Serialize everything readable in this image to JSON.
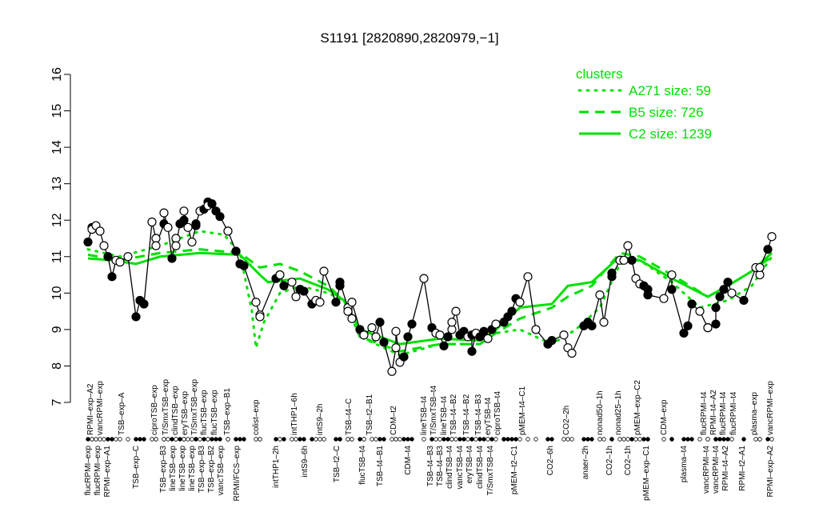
{
  "chart_data": {
    "type": "line",
    "title": "S1191 [2820890,2820979,−1]",
    "xlabel": "",
    "ylabel": "",
    "ylim": [
      7,
      16
    ],
    "xlim": [
      0,
      175
    ],
    "yticks": [
      "7",
      "8",
      "9",
      "10",
      "11",
      "12",
      "13",
      "14",
      "15",
      "16"
    ],
    "grid": false,
    "legend": {
      "title": "clusters",
      "placement": "top-right",
      "color": "#00e000",
      "entries": [
        {
          "label": "A271 size: 59",
          "style": "dotted"
        },
        {
          "label": "B5 size: 726",
          "style": "dashed"
        },
        {
          "label": "C2 size: 1239",
          "style": "solid"
        }
      ]
    },
    "points": [
      [
        2,
        11.4,
        1
      ],
      [
        3,
        11.8,
        1
      ],
      [
        3,
        11.75,
        0
      ],
      [
        4,
        11.85,
        0
      ],
      [
        5,
        11.7,
        0
      ],
      [
        6,
        11.3,
        0
      ],
      [
        7,
        11.0,
        1
      ],
      [
        8,
        10.45,
        1
      ],
      [
        9,
        10.9,
        0
      ],
      [
        10,
        10.85,
        0
      ],
      [
        12,
        11.0,
        0
      ],
      [
        14,
        9.35,
        1
      ],
      [
        15,
        9.8,
        1
      ],
      [
        16,
        9.7,
        1
      ],
      [
        18,
        11.95,
        0
      ],
      [
        19,
        11.5,
        0
      ],
      [
        19,
        11.3,
        0
      ],
      [
        21,
        11.9,
        1
      ],
      [
        21,
        12.2,
        0
      ],
      [
        22,
        11.8,
        0
      ],
      [
        23,
        10.95,
        1
      ],
      [
        24,
        11.5,
        0
      ],
      [
        24,
        11.3,
        0
      ],
      [
        25,
        11.9,
        1
      ],
      [
        26,
        12.0,
        1
      ],
      [
        26,
        12.25,
        0
      ],
      [
        27,
        11.8,
        0
      ],
      [
        28,
        11.4,
        0
      ],
      [
        29,
        11.85,
        1
      ],
      [
        29,
        11.9,
        1
      ],
      [
        30,
        12.25,
        0
      ],
      [
        31,
        12.3,
        1
      ],
      [
        32,
        12.5,
        1
      ],
      [
        32,
        12.4,
        0
      ],
      [
        33,
        12.45,
        1
      ],
      [
        34,
        12.25,
        1
      ],
      [
        35,
        12.1,
        1
      ],
      [
        37,
        11.7,
        0
      ],
      [
        37,
        11.7,
        0
      ],
      [
        39,
        11.15,
        1
      ],
      [
        40,
        10.8,
        1
      ],
      [
        41,
        10.75,
        1
      ],
      [
        44,
        9.75,
        0
      ],
      [
        45,
        9.4,
        0
      ],
      [
        45,
        9.35,
        0
      ],
      [
        49,
        10.4,
        1
      ],
      [
        50,
        10.5,
        1
      ],
      [
        50,
        10.5,
        0
      ],
      [
        51,
        10.2,
        1
      ],
      [
        53,
        10.3,
        0
      ],
      [
        54,
        9.9,
        0
      ],
      [
        55,
        10.1,
        1
      ],
      [
        56,
        10.05,
        1
      ],
      [
        58,
        9.7,
        1
      ],
      [
        59,
        9.8,
        0
      ],
      [
        60,
        9.75,
        0
      ],
      [
        61,
        10.6,
        0
      ],
      [
        64,
        9.75,
        1
      ],
      [
        65,
        10.2,
        1
      ],
      [
        65,
        10.3,
        1
      ],
      [
        67,
        9.6,
        0
      ],
      [
        67,
        9.5,
        0
      ],
      [
        68,
        9.3,
        0
      ],
      [
        68,
        9.75,
        0
      ],
      [
        70,
        9.0,
        1
      ],
      [
        71,
        8.85,
        1
      ],
      [
        71,
        8.85,
        0
      ],
      [
        73,
        9.05,
        0
      ],
      [
        74,
        8.8,
        0
      ],
      [
        75,
        9.2,
        1
      ],
      [
        76,
        8.65,
        1
      ],
      [
        78,
        7.85,
        0
      ],
      [
        79,
        8.5,
        0
      ],
      [
        79,
        8.95,
        0
      ],
      [
        80,
        8.1,
        0
      ],
      [
        81,
        8.25,
        1
      ],
      [
        82,
        8.8,
        1
      ],
      [
        83,
        9.15,
        1
      ],
      [
        86,
        10.4,
        0
      ],
      [
        88,
        9.05,
        1
      ],
      [
        89,
        8.9,
        0
      ],
      [
        90,
        8.85,
        0
      ],
      [
        91,
        8.55,
        1
      ],
      [
        92,
        8.8,
        1
      ],
      [
        93,
        9.0,
        0
      ],
      [
        93,
        9.2,
        0
      ],
      [
        94,
        9.5,
        0
      ],
      [
        95,
        8.85,
        1
      ],
      [
        96,
        8.95,
        1
      ],
      [
        97,
        8.8,
        0
      ],
      [
        98,
        8.85,
        1
      ],
      [
        98,
        8.4,
        1
      ],
      [
        99,
        8.9,
        0
      ],
      [
        100,
        8.8,
        1
      ],
      [
        101,
        8.95,
        1
      ],
      [
        102,
        8.75,
        0
      ],
      [
        103,
        9.0,
        1
      ],
      [
        104,
        9.15,
        0
      ],
      [
        106,
        9.2,
        0
      ],
      [
        106,
        9.2,
        1
      ],
      [
        107,
        9.35,
        1
      ],
      [
        108,
        9.5,
        1
      ],
      [
        109,
        9.85,
        1
      ],
      [
        110,
        9.75,
        0
      ],
      [
        112,
        10.45,
        0
      ],
      [
        114,
        9.0,
        0
      ],
      [
        117,
        8.6,
        1
      ],
      [
        118,
        8.7,
        1
      ],
      [
        121,
        8.85,
        0
      ],
      [
        122,
        8.5,
        0
      ],
      [
        123,
        8.35,
        0
      ],
      [
        126,
        9.1,
        1
      ],
      [
        127,
        9.2,
        1
      ],
      [
        128,
        9.1,
        1
      ],
      [
        130,
        9.95,
        0
      ],
      [
        131,
        9.2,
        0
      ],
      [
        133,
        10.55,
        1
      ],
      [
        133,
        10.45,
        1
      ],
      [
        135,
        10.9,
        0
      ],
      [
        136,
        10.9,
        0
      ],
      [
        137,
        11.3,
        0
      ],
      [
        138,
        10.9,
        1
      ],
      [
        139,
        10.4,
        0
      ],
      [
        140,
        10.25,
        0
      ],
      [
        141,
        10.2,
        1
      ],
      [
        142,
        10.1,
        1
      ],
      [
        142,
        9.95,
        1
      ],
      [
        146,
        9.85,
        0
      ],
      [
        148,
        10.5,
        0
      ],
      [
        148,
        10.1,
        1
      ],
      [
        151,
        8.9,
        1
      ],
      [
        152,
        9.1,
        1
      ],
      [
        153,
        9.7,
        1
      ],
      [
        155,
        9.5,
        0
      ],
      [
        157,
        9.05,
        1
      ],
      [
        157,
        9.05,
        0
      ],
      [
        159,
        9.15,
        1
      ],
      [
        159,
        9.6,
        1
      ],
      [
        160,
        9.9,
        1
      ],
      [
        161,
        10.1,
        1
      ],
      [
        162,
        10.3,
        1
      ],
      [
        163,
        10.0,
        0
      ],
      [
        166,
        9.8,
        1
      ],
      [
        169,
        10.7,
        0
      ],
      [
        170,
        10.5,
        0
      ],
      [
        170,
        10.7,
        0
      ],
      [
        172,
        11.2,
        1
      ],
      [
        173,
        11.55,
        0
      ]
    ],
    "series": [
      {
        "name": "A271 size: 59",
        "style": "dotted",
        "xy": [
          [
            2,
            11.2
          ],
          [
            10,
            11.0
          ],
          [
            20,
            11.3
          ],
          [
            30,
            11.7
          ],
          [
            36,
            11.6
          ],
          [
            40,
            11.1
          ],
          [
            43,
            9.5
          ],
          [
            44,
            8.5
          ],
          [
            46,
            9.2
          ],
          [
            50,
            10.0
          ],
          [
            55,
            10.2
          ],
          [
            62,
            10.0
          ],
          [
            66,
            9.8
          ],
          [
            70,
            8.8
          ],
          [
            80,
            8.3
          ],
          [
            90,
            8.6
          ],
          [
            100,
            8.6
          ],
          [
            104,
            8.9
          ],
          [
            110,
            9.0
          ],
          [
            118,
            8.6
          ],
          [
            124,
            9.0
          ],
          [
            130,
            9.6
          ],
          [
            135,
            10.8
          ],
          [
            140,
            10.9
          ],
          [
            148,
            10.3
          ],
          [
            155,
            9.6
          ],
          [
            162,
            9.8
          ],
          [
            168,
            10.2
          ],
          [
            173,
            11.0
          ]
        ]
      },
      {
        "name": "B5 size: 726",
        "style": "dashed",
        "xy": [
          [
            2,
            11.05
          ],
          [
            10,
            10.9
          ],
          [
            20,
            11.1
          ],
          [
            30,
            11.2
          ],
          [
            40,
            11.1
          ],
          [
            45,
            10.7
          ],
          [
            50,
            10.8
          ],
          [
            55,
            10.6
          ],
          [
            62,
            10.2
          ],
          [
            66,
            9.8
          ],
          [
            70,
            8.8
          ],
          [
            80,
            8.4
          ],
          [
            90,
            8.6
          ],
          [
            100,
            8.6
          ],
          [
            104,
            8.9
          ],
          [
            110,
            9.3
          ],
          [
            118,
            9.6
          ],
          [
            122,
            9.9
          ],
          [
            128,
            10.2
          ],
          [
            135,
            11.1
          ],
          [
            140,
            11.0
          ],
          [
            148,
            10.5
          ],
          [
            157,
            9.9
          ],
          [
            162,
            10.2
          ],
          [
            168,
            10.6
          ],
          [
            173,
            11.0
          ]
        ]
      },
      {
        "name": "C2 size: 1239",
        "style": "solid",
        "xy": [
          [
            2,
            10.95
          ],
          [
            8,
            10.9
          ],
          [
            14,
            10.8
          ],
          [
            20,
            11.0
          ],
          [
            30,
            11.1
          ],
          [
            40,
            11.05
          ],
          [
            45,
            10.5
          ],
          [
            47,
            10.3
          ],
          [
            55,
            10.4
          ],
          [
            62,
            10.1
          ],
          [
            66,
            9.8
          ],
          [
            70,
            9.0
          ],
          [
            75,
            8.8
          ],
          [
            80,
            8.6
          ],
          [
            90,
            8.75
          ],
          [
            100,
            8.7
          ],
          [
            104,
            9.0
          ],
          [
            110,
            9.6
          ],
          [
            118,
            9.7
          ],
          [
            122,
            10.2
          ],
          [
            128,
            10.3
          ],
          [
            135,
            11.0
          ],
          [
            140,
            10.9
          ],
          [
            148,
            10.4
          ],
          [
            157,
            9.9
          ],
          [
            162,
            10.2
          ],
          [
            168,
            10.6
          ],
          [
            173,
            11.1
          ]
        ]
      }
    ],
    "top_labels": [
      [
        2.6,
        "RPMI–exp–A2"
      ],
      [
        4.4,
        "vancRPMI–exp"
      ],
      [
        10.4,
        "TSB–exp–A"
      ],
      [
        18.6,
        "ciproTSB–exp"
      ],
      [
        21.4,
        "T/SmxTSB–exp"
      ],
      [
        23.6,
        "clindTSB–exp"
      ],
      [
        26.2,
        "eryTSB–exp"
      ],
      [
        28.6,
        "T/SmxTSB–exp"
      ],
      [
        31,
        "flucTSB–exp"
      ],
      [
        33.6,
        "flucTSB–exp"
      ],
      [
        36.8,
        "TSB–exp–B1"
      ],
      [
        44,
        "colist–exp"
      ],
      [
        53.6,
        "intTHP1–6h"
      ],
      [
        60,
        "intS9–2h"
      ],
      [
        67.2,
        "TSB–t4–C"
      ],
      [
        72.4,
        "TSB–t2–B1"
      ],
      [
        78.4,
        "CDM–t2"
      ],
      [
        86,
        "lineTSB–t4"
      ],
      [
        88.4,
        "T/SmxTSB–t4"
      ],
      [
        91,
        "lineTSB–t4"
      ],
      [
        93.4,
        "TSB–t4–B2"
      ],
      [
        96.6,
        "TSB–t4–B2"
      ],
      [
        99.6,
        "TSB–t4–B3"
      ],
      [
        102,
        "eryTSB–t4"
      ],
      [
        104.4,
        "ciproTSB–t4"
      ],
      [
        110.6,
        "pMEM–t4–C1"
      ],
      [
        121.6,
        "CO2–2h"
      ],
      [
        130,
        "nonad50–1h"
      ],
      [
        134.6,
        "nonad25–1h"
      ],
      [
        139.4,
        "pMEM–exp–C2"
      ],
      [
        146,
        "CDM–exp"
      ],
      [
        156,
        "flucRPMI–t4"
      ],
      [
        157.2,
        "RPMI–t4–A2"
      ],
      [
        160.6,
        "flucRPMI–t4"
      ],
      [
        163.4,
        "flucRPMI–t4"
      ],
      [
        168.6,
        "plasma–exp"
      ],
      [
        172.6,
        "vancRPMI–exp"
      ]
    ],
    "bottom_labels": [
      [
        2,
        "flucRPMI–exp"
      ],
      [
        4.4,
        "flucRPMI–exp"
      ],
      [
        6.8,
        "RPMI–exp–A1"
      ],
      [
        14,
        "TSB–exp–C"
      ],
      [
        20.8,
        "TSB–exp–B3"
      ],
      [
        23,
        "lineTSB–exp"
      ],
      [
        25.4,
        "lineTSB–exp"
      ],
      [
        27.4,
        "lineTSB–exp"
      ],
      [
        28,
        "TSB–exp–B3"
      ],
      [
        31.4,
        "TSB–exp–B2"
      ],
      [
        33.6,
        "vancTSB–exp"
      ],
      [
        39.2,
        "RPMI/FCS–exp"
      ],
      [
        49,
        "intTHP1–2h"
      ],
      [
        56.2,
        "intS9–6h"
      ],
      [
        64.2,
        "TSB–t2–C"
      ],
      [
        70.6,
        "flucTSB–t4"
      ],
      [
        75,
        "TSB–t4–B1"
      ],
      [
        82,
        "CDM–t4"
      ],
      [
        87.6,
        "TSB–t4–B3"
      ],
      [
        90,
        "TSB–t4–B3"
      ],
      [
        92.4,
        "clindTSB–t4"
      ],
      [
        95,
        "vancTSB–t4"
      ],
      [
        97.4,
        "eryTSB–t4"
      ],
      [
        100,
        "clindTSB–t4"
      ],
      [
        102.6,
        "T/SmxTSB–t4"
      ],
      [
        108.6,
        "pMEM–t2–C1"
      ],
      [
        117.6,
        "CO2–6h"
      ],
      [
        126.4,
        "anaer–2h"
      ],
      [
        132.4,
        "CO2–1h"
      ],
      [
        137,
        "CO2–1h"
      ],
      [
        141.6,
        "pMEM–exp–C1"
      ],
      [
        151,
        "plasma–t4"
      ],
      [
        156.6,
        "vancRPMI–t4"
      ],
      [
        157.8,
        "vancRPMI–t4"
      ],
      [
        160.6,
        "RPMI–t4–A2"
      ],
      [
        165.6,
        "RPMI–t2–A1"
      ],
      [
        172.6,
        "RPMI–exp–A2"
      ]
    ]
  }
}
